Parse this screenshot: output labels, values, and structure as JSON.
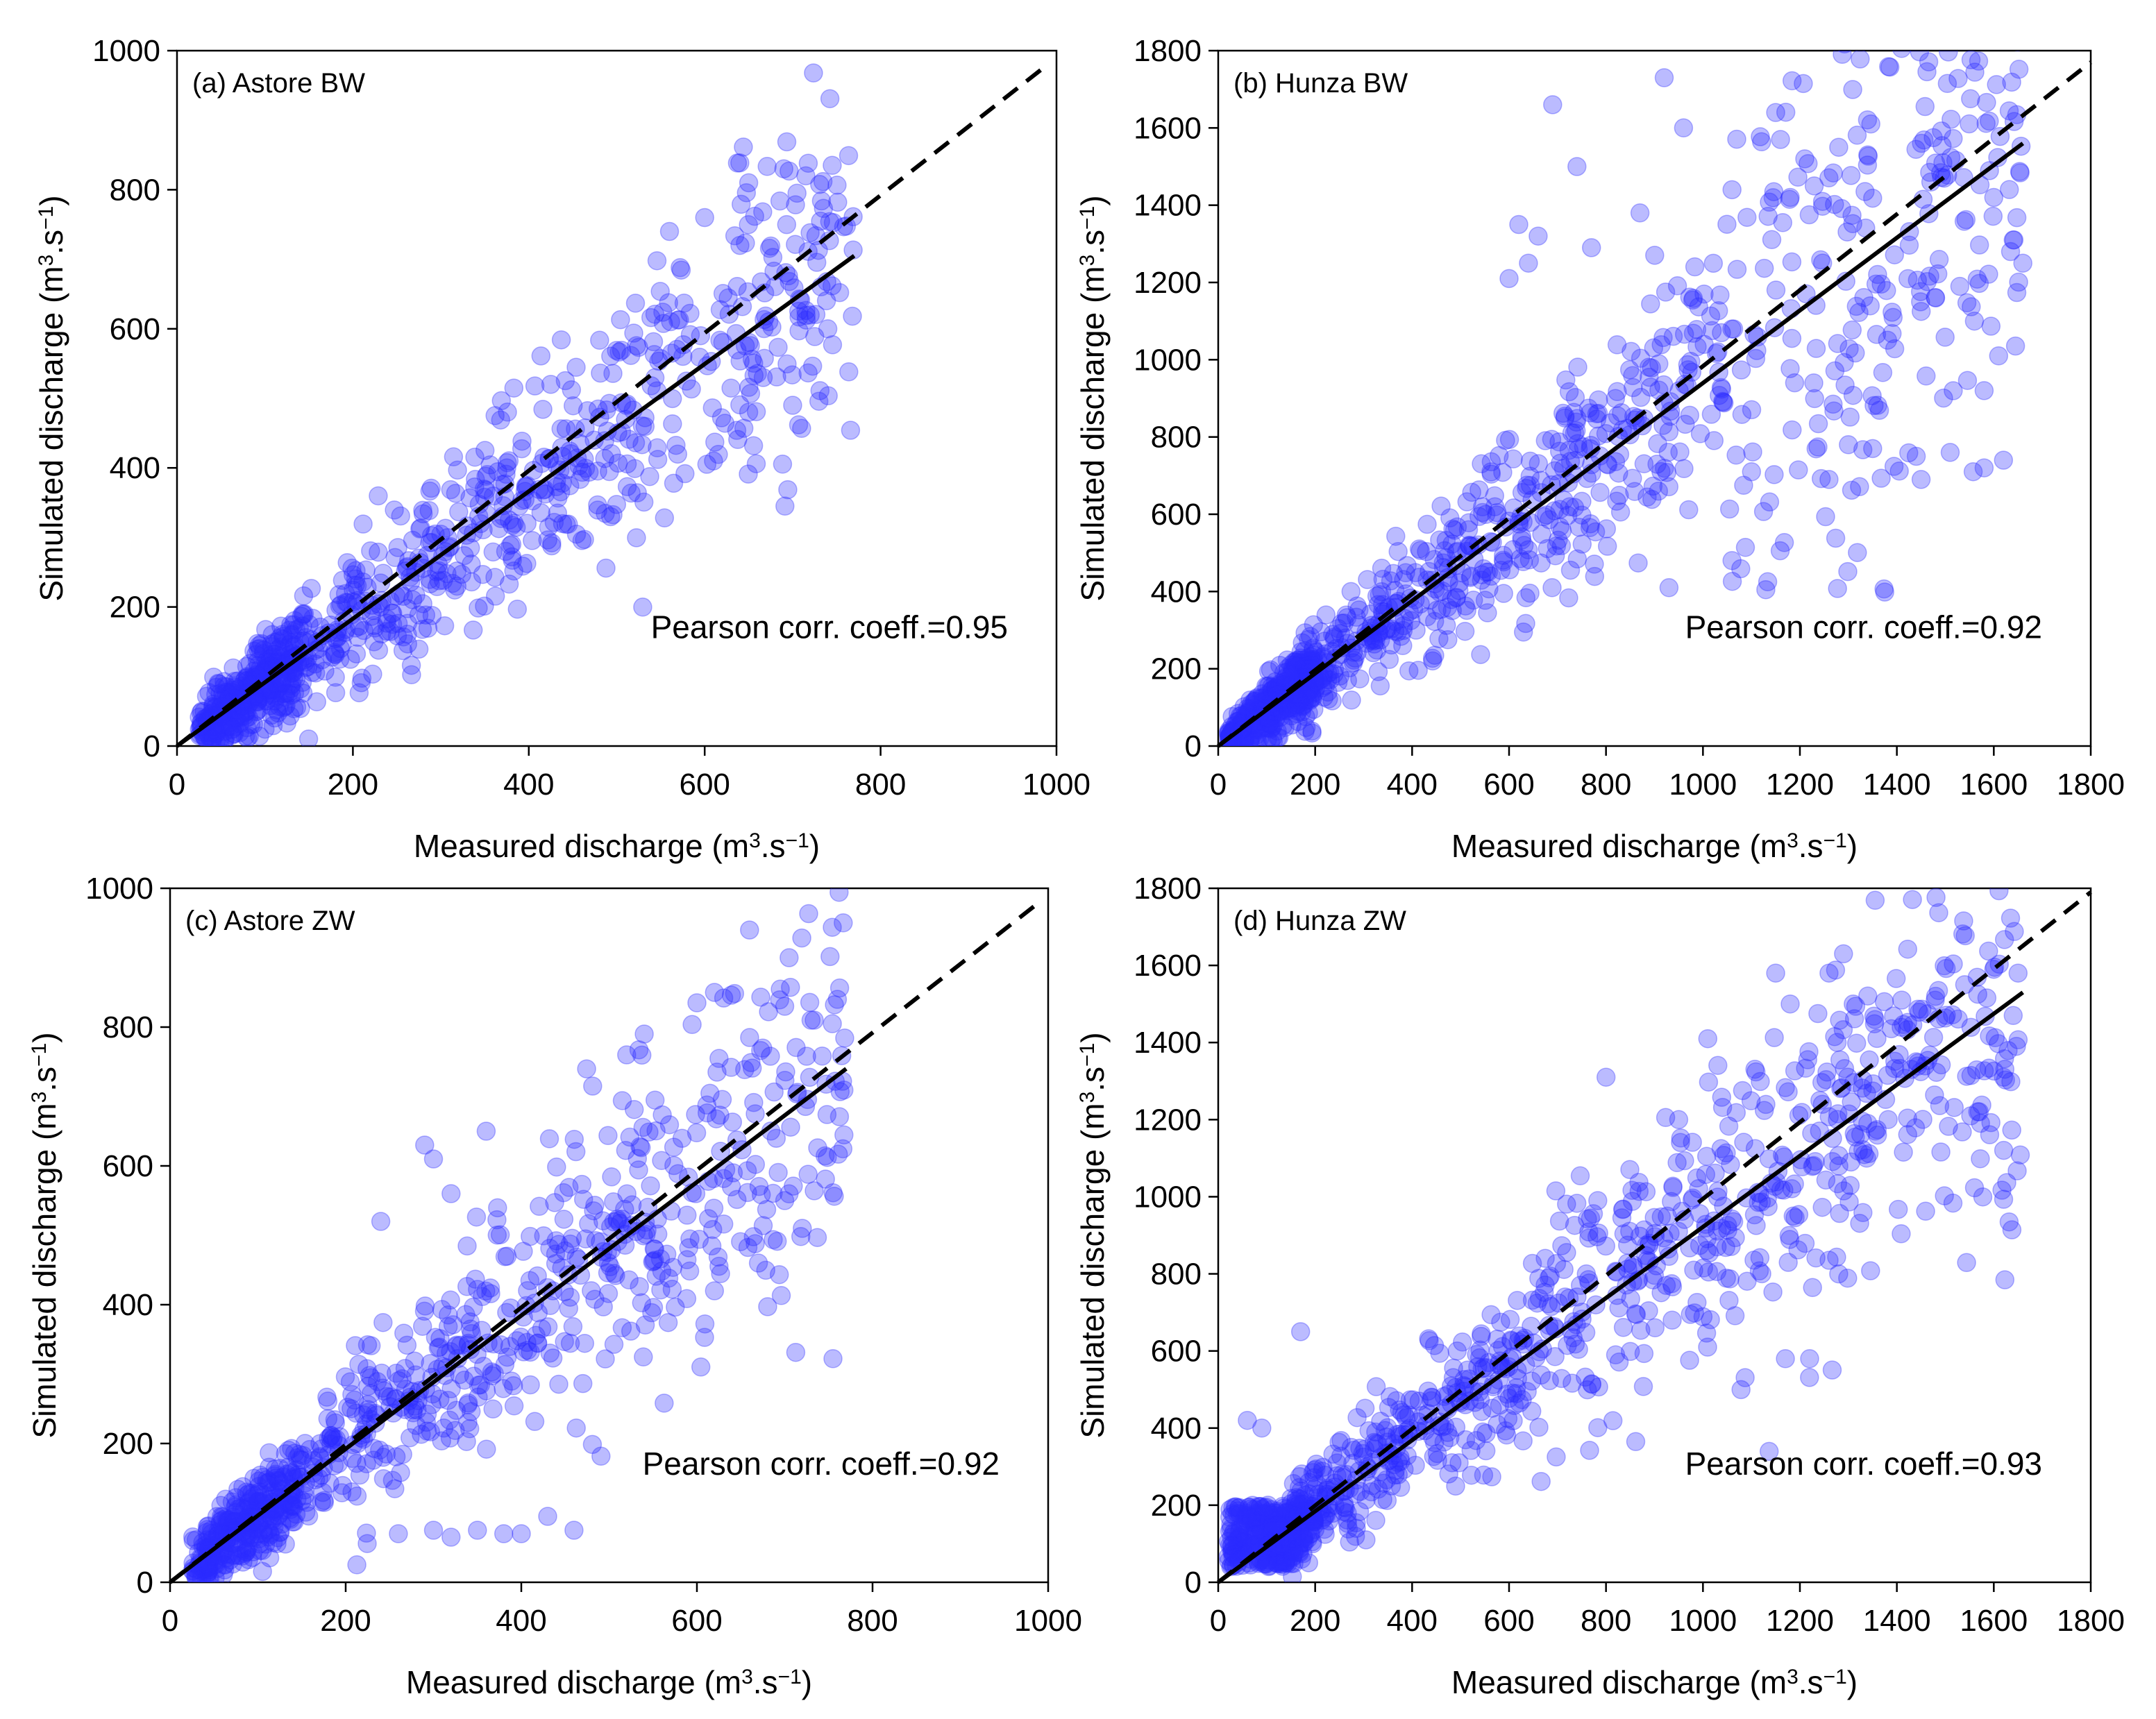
{
  "chart_data": [
    {
      "type": "scatter",
      "id": "a",
      "panel_label": "(a) Astore BW",
      "xlabel_main": "Measured discharge (m",
      "xlabel_sup1": "3",
      "xlabel_mid": ".s",
      "xlabel_sup2": "−1",
      "xlabel_end": ")",
      "ylabel_main": "Simulated discharge (m",
      "ylabel_sup1": "3",
      "ylabel_mid": ".s",
      "ylabel_sup2": "−1",
      "ylabel_end": ")",
      "xlim": [
        0,
        1000
      ],
      "ylim": [
        0,
        1000
      ],
      "xticks": [
        0,
        200,
        400,
        600,
        800,
        1000
      ],
      "yticks": [
        0,
        200,
        400,
        600,
        800,
        1000
      ],
      "annotation": "Pearson corr. coeff.=0.95",
      "pearson": 0.95,
      "one_to_one_line": {
        "style": "dashed",
        "from": [
          0,
          0
        ],
        "to": [
          990,
          980
        ]
      },
      "fit_line": {
        "style": "solid",
        "from": [
          0,
          0
        ],
        "to": [
          770,
          705
        ]
      },
      "cloud": {
        "n": 900,
        "x_max": 770,
        "seed": 11,
        "pattern": "astore_bw"
      },
      "extreme_points": [
        [
          690,
          830
        ],
        [
          715,
          820
        ],
        [
          705,
          795
        ],
        [
          745,
          835
        ],
        [
          650,
          810
        ],
        [
          600,
          760
        ],
        [
          560,
          740
        ],
        [
          640,
          720
        ],
        [
          720,
          620
        ],
        [
          740,
          600
        ],
        [
          700,
          490
        ],
        [
          650,
          480
        ],
        [
          610,
          410
        ]
      ]
    },
    {
      "type": "scatter",
      "id": "b",
      "panel_label": "(b) Hunza BW",
      "xlabel_main": "Measured discharge (m",
      "xlabel_sup1": "3",
      "xlabel_mid": ".s",
      "xlabel_sup2": "−1",
      "xlabel_end": ")",
      "ylabel_main": "Simulated discharge (m",
      "ylabel_sup1": "3",
      "ylabel_mid": ".s",
      "ylabel_sup2": "−1",
      "ylabel_end": ")",
      "xlim": [
        0,
        1800
      ],
      "ylim": [
        0,
        1800
      ],
      "xticks": [
        0,
        200,
        400,
        600,
        800,
        1000,
        1200,
        1400,
        1600,
        1800
      ],
      "yticks": [
        0,
        200,
        400,
        600,
        800,
        1000,
        1200,
        1400,
        1600,
        1800
      ],
      "annotation": "Pearson corr. coeff.=0.92",
      "pearson": 0.92,
      "one_to_one_line": {
        "style": "dashed",
        "from": [
          0,
          0
        ],
        "to": [
          1800,
          1770
        ]
      },
      "fit_line": {
        "style": "solid",
        "from": [
          0,
          0
        ],
        "to": [
          1660,
          1560
        ]
      },
      "cloud": {
        "n": 1100,
        "x_max": 1660,
        "seed": 23,
        "pattern": "hunza_bw"
      },
      "extreme_points": [
        [
          920,
          1730
        ],
        [
          690,
          1660
        ],
        [
          1150,
          1640
        ],
        [
          960,
          1600
        ],
        [
          1160,
          1570
        ],
        [
          1280,
          1550
        ],
        [
          1210,
          1520
        ],
        [
          1340,
          1530
        ],
        [
          1470,
          1460
        ],
        [
          740,
          1500
        ],
        [
          1060,
          1440
        ],
        [
          1180,
          1420
        ],
        [
          620,
          1350
        ],
        [
          660,
          1320
        ],
        [
          870,
          1380
        ],
        [
          1600,
          1420
        ],
        [
          1640,
          1310
        ],
        [
          1660,
          1250
        ],
        [
          1480,
          1160
        ],
        [
          1530,
          1190
        ],
        [
          1560,
          1100
        ],
        [
          1580,
          920
        ],
        [
          1610,
          1010
        ],
        [
          1350,
          770
        ],
        [
          1440,
          750
        ],
        [
          1510,
          760
        ],
        [
          1580,
          720
        ],
        [
          1620,
          740
        ],
        [
          1450,
          690
        ],
        [
          1260,
          690
        ],
        [
          1300,
          780
        ],
        [
          1060,
          480
        ],
        [
          930,
          410
        ],
        [
          600,
          1210
        ],
        [
          640,
          1250
        ],
        [
          770,
          1290
        ]
      ]
    },
    {
      "type": "scatter",
      "id": "c",
      "panel_label": "(c) Astore ZW",
      "xlabel_main": "Measured discharge (m",
      "xlabel_sup1": "3",
      "xlabel_mid": ".s",
      "xlabel_sup2": "−1",
      "xlabel_end": ")",
      "ylabel_main": "Simulated discharge (m",
      "ylabel_sup1": "3",
      "ylabel_mid": ".s",
      "ylabel_sup2": "−1",
      "ylabel_end": ")",
      "xlim": [
        0,
        1000
      ],
      "ylim": [
        0,
        1000
      ],
      "xticks": [
        0,
        200,
        400,
        600,
        800,
        1000
      ],
      "yticks": [
        0,
        200,
        400,
        600,
        800,
        1000
      ],
      "annotation": "Pearson corr. coeff.=0.92",
      "pearson": 0.92,
      "one_to_one_line": {
        "style": "dashed",
        "from": [
          0,
          0
        ],
        "to": [
          990,
          980
        ]
      },
      "fit_line": {
        "style": "solid",
        "from": [
          0,
          0
        ],
        "to": [
          770,
          740
        ]
      },
      "cloud": {
        "n": 850,
        "x_max": 770,
        "seed": 37,
        "pattern": "astore_zw"
      },
      "extreme_points": [
        [
          705,
          900
        ],
        [
          620,
          850
        ],
        [
          600,
          835
        ],
        [
          660,
          785
        ],
        [
          700,
          830
        ],
        [
          730,
          810
        ],
        [
          760,
          840
        ],
        [
          540,
          790
        ],
        [
          520,
          760
        ],
        [
          290,
          630
        ],
        [
          300,
          610
        ],
        [
          360,
          650
        ],
        [
          320,
          560
        ],
        [
          240,
          520
        ],
        [
          700,
          550
        ],
        [
          720,
          510
        ],
        [
          670,
          460
        ],
        [
          620,
          420
        ],
        [
          350,
          75
        ],
        [
          380,
          70
        ],
        [
          400,
          70
        ],
        [
          460,
          75
        ],
        [
          430,
          95
        ],
        [
          300,
          75
        ],
        [
          260,
          70
        ],
        [
          320,
          65
        ]
      ]
    },
    {
      "type": "scatter",
      "id": "d",
      "panel_label": "(d) Hunza ZW",
      "xlabel_main": "Measured discharge (m",
      "xlabel_sup1": "3",
      "xlabel_mid": ".s",
      "xlabel_sup2": "−1",
      "xlabel_end": ")",
      "ylabel_main": "Simulated discharge (m",
      "ylabel_sup1": "3",
      "ylabel_mid": ".s",
      "ylabel_sup2": "−1",
      "ylabel_end": ")",
      "xlim": [
        0,
        1800
      ],
      "ylim": [
        0,
        1800
      ],
      "xticks": [
        0,
        200,
        400,
        600,
        800,
        1000,
        1200,
        1400,
        1600,
        1800
      ],
      "yticks": [
        0,
        200,
        400,
        600,
        800,
        1000,
        1200,
        1400,
        1600,
        1800
      ],
      "annotation": "Pearson corr. coeff.=0.93",
      "pearson": 0.93,
      "one_to_one_line": {
        "style": "dashed",
        "from": [
          0,
          0
        ],
        "to": [
          1800,
          1790
        ]
      },
      "fit_line": {
        "style": "solid",
        "from": [
          0,
          0
        ],
        "to": [
          1660,
          1530
        ]
      },
      "cloud": {
        "n": 1100,
        "x_max": 1660,
        "seed": 53,
        "pattern": "hunza_zw"
      },
      "extreme_points": [
        [
          1290,
          1630
        ],
        [
          1150,
          1580
        ],
        [
          1260,
          1580
        ],
        [
          1180,
          1500
        ],
        [
          1310,
          1500
        ],
        [
          1410,
          1510
        ],
        [
          1540,
          1550
        ],
        [
          1600,
          1590
        ],
        [
          1650,
          1580
        ],
        [
          1480,
          1520
        ],
        [
          1640,
          1470
        ],
        [
          1620,
          1310
        ],
        [
          1440,
          1350
        ],
        [
          1340,
          1190
        ],
        [
          1360,
          1160
        ],
        [
          1280,
          800
        ],
        [
          1170,
          580
        ],
        [
          1220,
          580
        ],
        [
          950,
          1200
        ],
        [
          1010,
          1410
        ],
        [
          800,
          1310
        ],
        [
          60,
          420
        ],
        [
          90,
          400
        ],
        [
          170,
          650
        ]
      ]
    }
  ]
}
